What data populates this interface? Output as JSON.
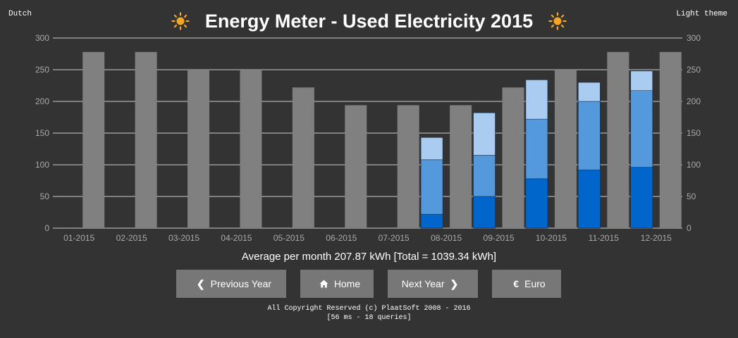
{
  "header": {
    "lang_link": "Dutch",
    "theme_link": "Light theme",
    "title": "Energy Meter - Used Electricity 2015",
    "sun_icon": "sun-icon",
    "sun_color": "#f5a623"
  },
  "chart_data": {
    "type": "bar",
    "title": "",
    "xlabel": "",
    "ylabel": "",
    "ylim": [
      0,
      300
    ],
    "yticks": [
      0,
      50,
      100,
      150,
      200,
      250,
      300
    ],
    "grid": true,
    "categories": [
      "01-2015",
      "02-2015",
      "03-2015",
      "04-2015",
      "05-2015",
      "06-2015",
      "07-2015",
      "08-2015",
      "09-2015",
      "10-2015",
      "11-2015",
      "12-2015"
    ],
    "stacked_series": [
      {
        "color": "#0066cc",
        "values": [
          0,
          0,
          0,
          0,
          0,
          0,
          0,
          22,
          50,
          78,
          92,
          96
        ]
      },
      {
        "color": "#5599dd",
        "values": [
          0,
          0,
          0,
          0,
          0,
          0,
          0,
          86,
          65,
          94,
          108,
          121
        ]
      },
      {
        "color": "#aaccf0",
        "values": [
          0,
          0,
          0,
          0,
          0,
          0,
          0,
          35,
          67,
          62,
          30,
          31
        ]
      }
    ],
    "reference_series": {
      "color": "#808080",
      "values": [
        278,
        278,
        250,
        250,
        222,
        194,
        194,
        194,
        222,
        250,
        278,
        278
      ]
    },
    "colors": {
      "grid": "#cccccc",
      "axis_text": "#aaaaaa"
    }
  },
  "summary": {
    "text": "Average per month 207.87 kWh [Total = 1039.34 kWh]"
  },
  "nav": {
    "prev_label": "Previous Year",
    "prev_icon": "chevron-left-icon",
    "home_label": "Home",
    "home_icon": "home-icon",
    "next_label": "Next Year",
    "next_icon": "chevron-right-icon",
    "euro_label": "Euro",
    "euro_icon": "euro-icon"
  },
  "footer": {
    "copyright": "All Copyright Reserved (c) PlaatSoft 2008 - 2016",
    "stats": "[56 ms - 18 queries]"
  }
}
